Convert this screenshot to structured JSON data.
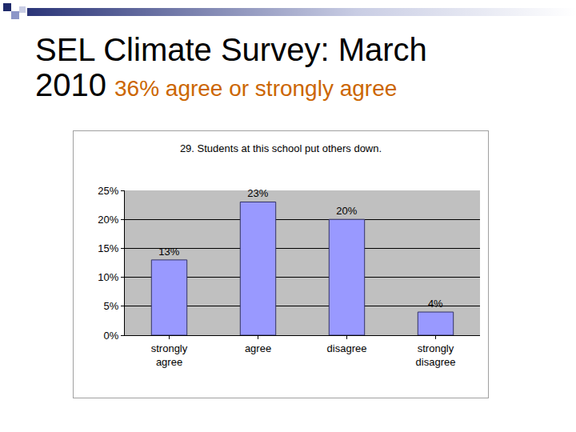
{
  "slide": {
    "title": "SEL Climate Survey: March 2010",
    "subtitle": "36% agree or strongly agree"
  },
  "chart_data": {
    "type": "bar",
    "title": "29. Students at this school put others down.",
    "categories": [
      "strongly agree",
      "agree",
      "disagree",
      "strongly disagree"
    ],
    "values": [
      13,
      23,
      20,
      4
    ],
    "value_labels": [
      "13%",
      "23%",
      "20%",
      "4%"
    ],
    "color": "#9999ff",
    "ylim": [
      0,
      25
    ],
    "yticks": [
      {
        "value": 0,
        "label": "0%"
      },
      {
        "value": 5,
        "label": "5%"
      },
      {
        "value": 10,
        "label": "10%"
      },
      {
        "value": 15,
        "label": "15%"
      },
      {
        "value": 20,
        "label": "20%"
      },
      {
        "value": 25,
        "label": "25%"
      }
    ],
    "grid": true,
    "data_labels": true
  }
}
